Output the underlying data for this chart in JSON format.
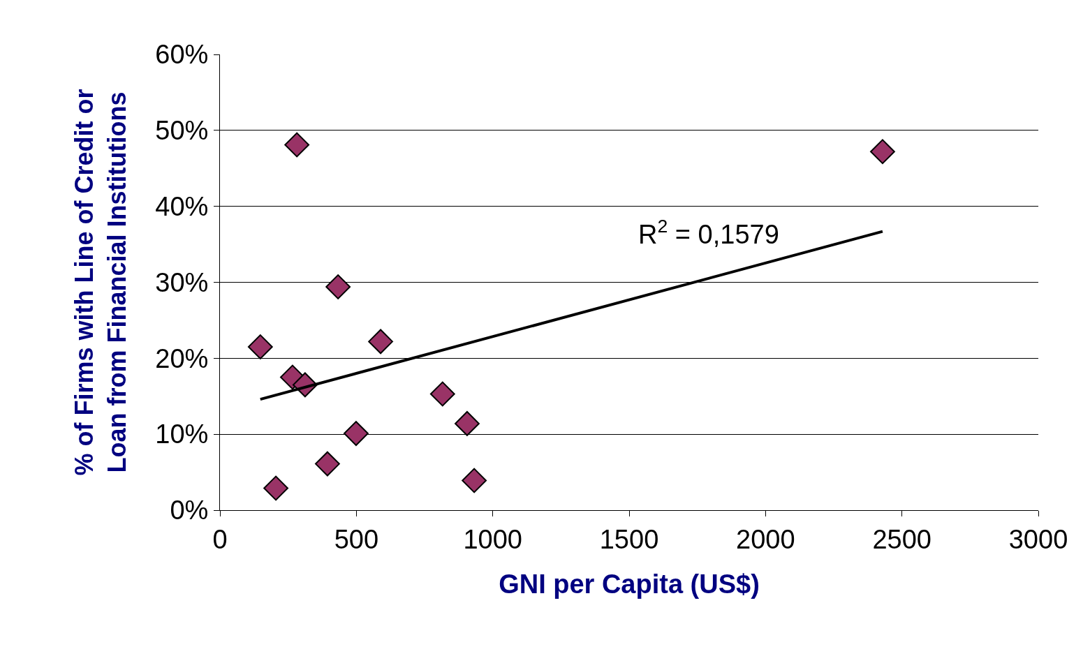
{
  "chart_data": {
    "type": "scatter",
    "xlabel": "GNI per Capita (US$)",
    "ylabel": "% of Firms with Line of Credit or Loan from Financial Institutions",
    "xlim": [
      0,
      3000
    ],
    "xticks": [
      0,
      500,
      1000,
      1500,
      2000,
      2500,
      3000
    ],
    "ylim": [
      0,
      60
    ],
    "yticks": [
      {
        "value": 0,
        "label": "0%"
      },
      {
        "value": 10,
        "label": "10%"
      },
      {
        "value": 20,
        "label": "20%"
      },
      {
        "value": 30,
        "label": "30%"
      },
      {
        "value": 40,
        "label": "40%"
      },
      {
        "value": 50,
        "label": "50%"
      },
      {
        "value": 60,
        "label": "60%"
      }
    ],
    "grid": "y",
    "legend": false,
    "marker": "diamond",
    "series": [
      {
        "color": "#993366",
        "x": [
          148,
          282,
          2429,
          433,
          589,
          266,
          312,
          816,
          906,
          499,
          394,
          205,
          932
        ],
        "values": [
          21.5,
          48.1,
          47.2,
          29.4,
          22.2,
          17.5,
          16.5,
          15.3,
          11.4,
          10.1,
          6.1,
          2.9,
          3.9
        ]
      },
      {
        "type": "line",
        "color": "#000000",
        "line_style": "solid",
        "marker": "none",
        "x": [
          148,
          2429
        ],
        "values": [
          14.6,
          36.7
        ]
      }
    ],
    "annotations": [
      "R$^{2}$ = 0,1579"
    ]
  }
}
